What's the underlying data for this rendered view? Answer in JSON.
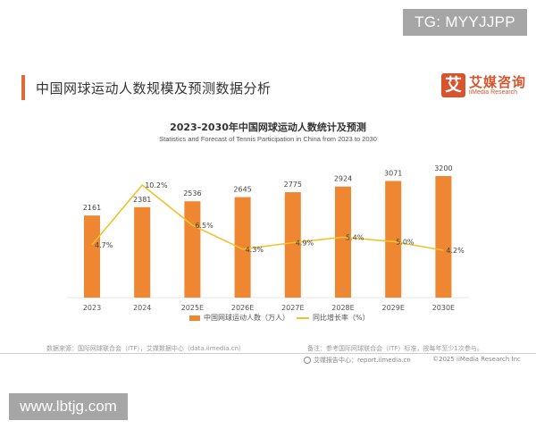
{
  "watermarks": {
    "top_right": "TG: MYYJJPP",
    "bottom_left": "www.lbtjg.com"
  },
  "header": {
    "title": "中国网球运动人数规模及预测数据分析",
    "logo": {
      "mark": "艾",
      "name_cn": "艾媒咨询",
      "name_en": "iiMedia Research"
    }
  },
  "chart_data": {
    "type": "bar",
    "title": "2023-2030年中国网球运动人数统计及预测",
    "subtitle": "Statistics and Forecast of Tennis Participation in China from 2023 to 2030",
    "categories": [
      "2023",
      "2024",
      "2025E",
      "2026E",
      "2027E",
      "2028E",
      "2029E",
      "2030E"
    ],
    "series": [
      {
        "name": "中国网球运动人数（万人）",
        "type": "bar",
        "color": "#ee8632",
        "values": [
          2161,
          2381,
          2536,
          2645,
          2775,
          2924,
          3071,
          3200
        ]
      },
      {
        "name": "同比增长率（%）",
        "type": "line",
        "color": "#f0c22e",
        "values": [
          4.7,
          10.2,
          6.5,
          4.3,
          4.9,
          5.4,
          5.0,
          4.2
        ],
        "labels": [
          "4.7%",
          "10.2%",
          "6.5%",
          "4.3%",
          "4.9%",
          "5.4%",
          "5.0%",
          "4.2%"
        ]
      }
    ],
    "xlabel": "",
    "ylabel": "",
    "grid": false,
    "legend_position": "bottom"
  },
  "legend": {
    "bar": "中国网球运动人数（万人）",
    "line": "同比增长率（%）"
  },
  "footer": {
    "source": "数据来源：国际网球联合会（ITF），艾媒数据中心（data.iimedia.cn）",
    "note": "备注：参考国际网球联合会（ITF）标准，按每年至少1次参与。",
    "report_center": "艾媒报告中心：report.iimedia.cn",
    "copyright": "©2025  iiMedia Research  Inc"
  }
}
